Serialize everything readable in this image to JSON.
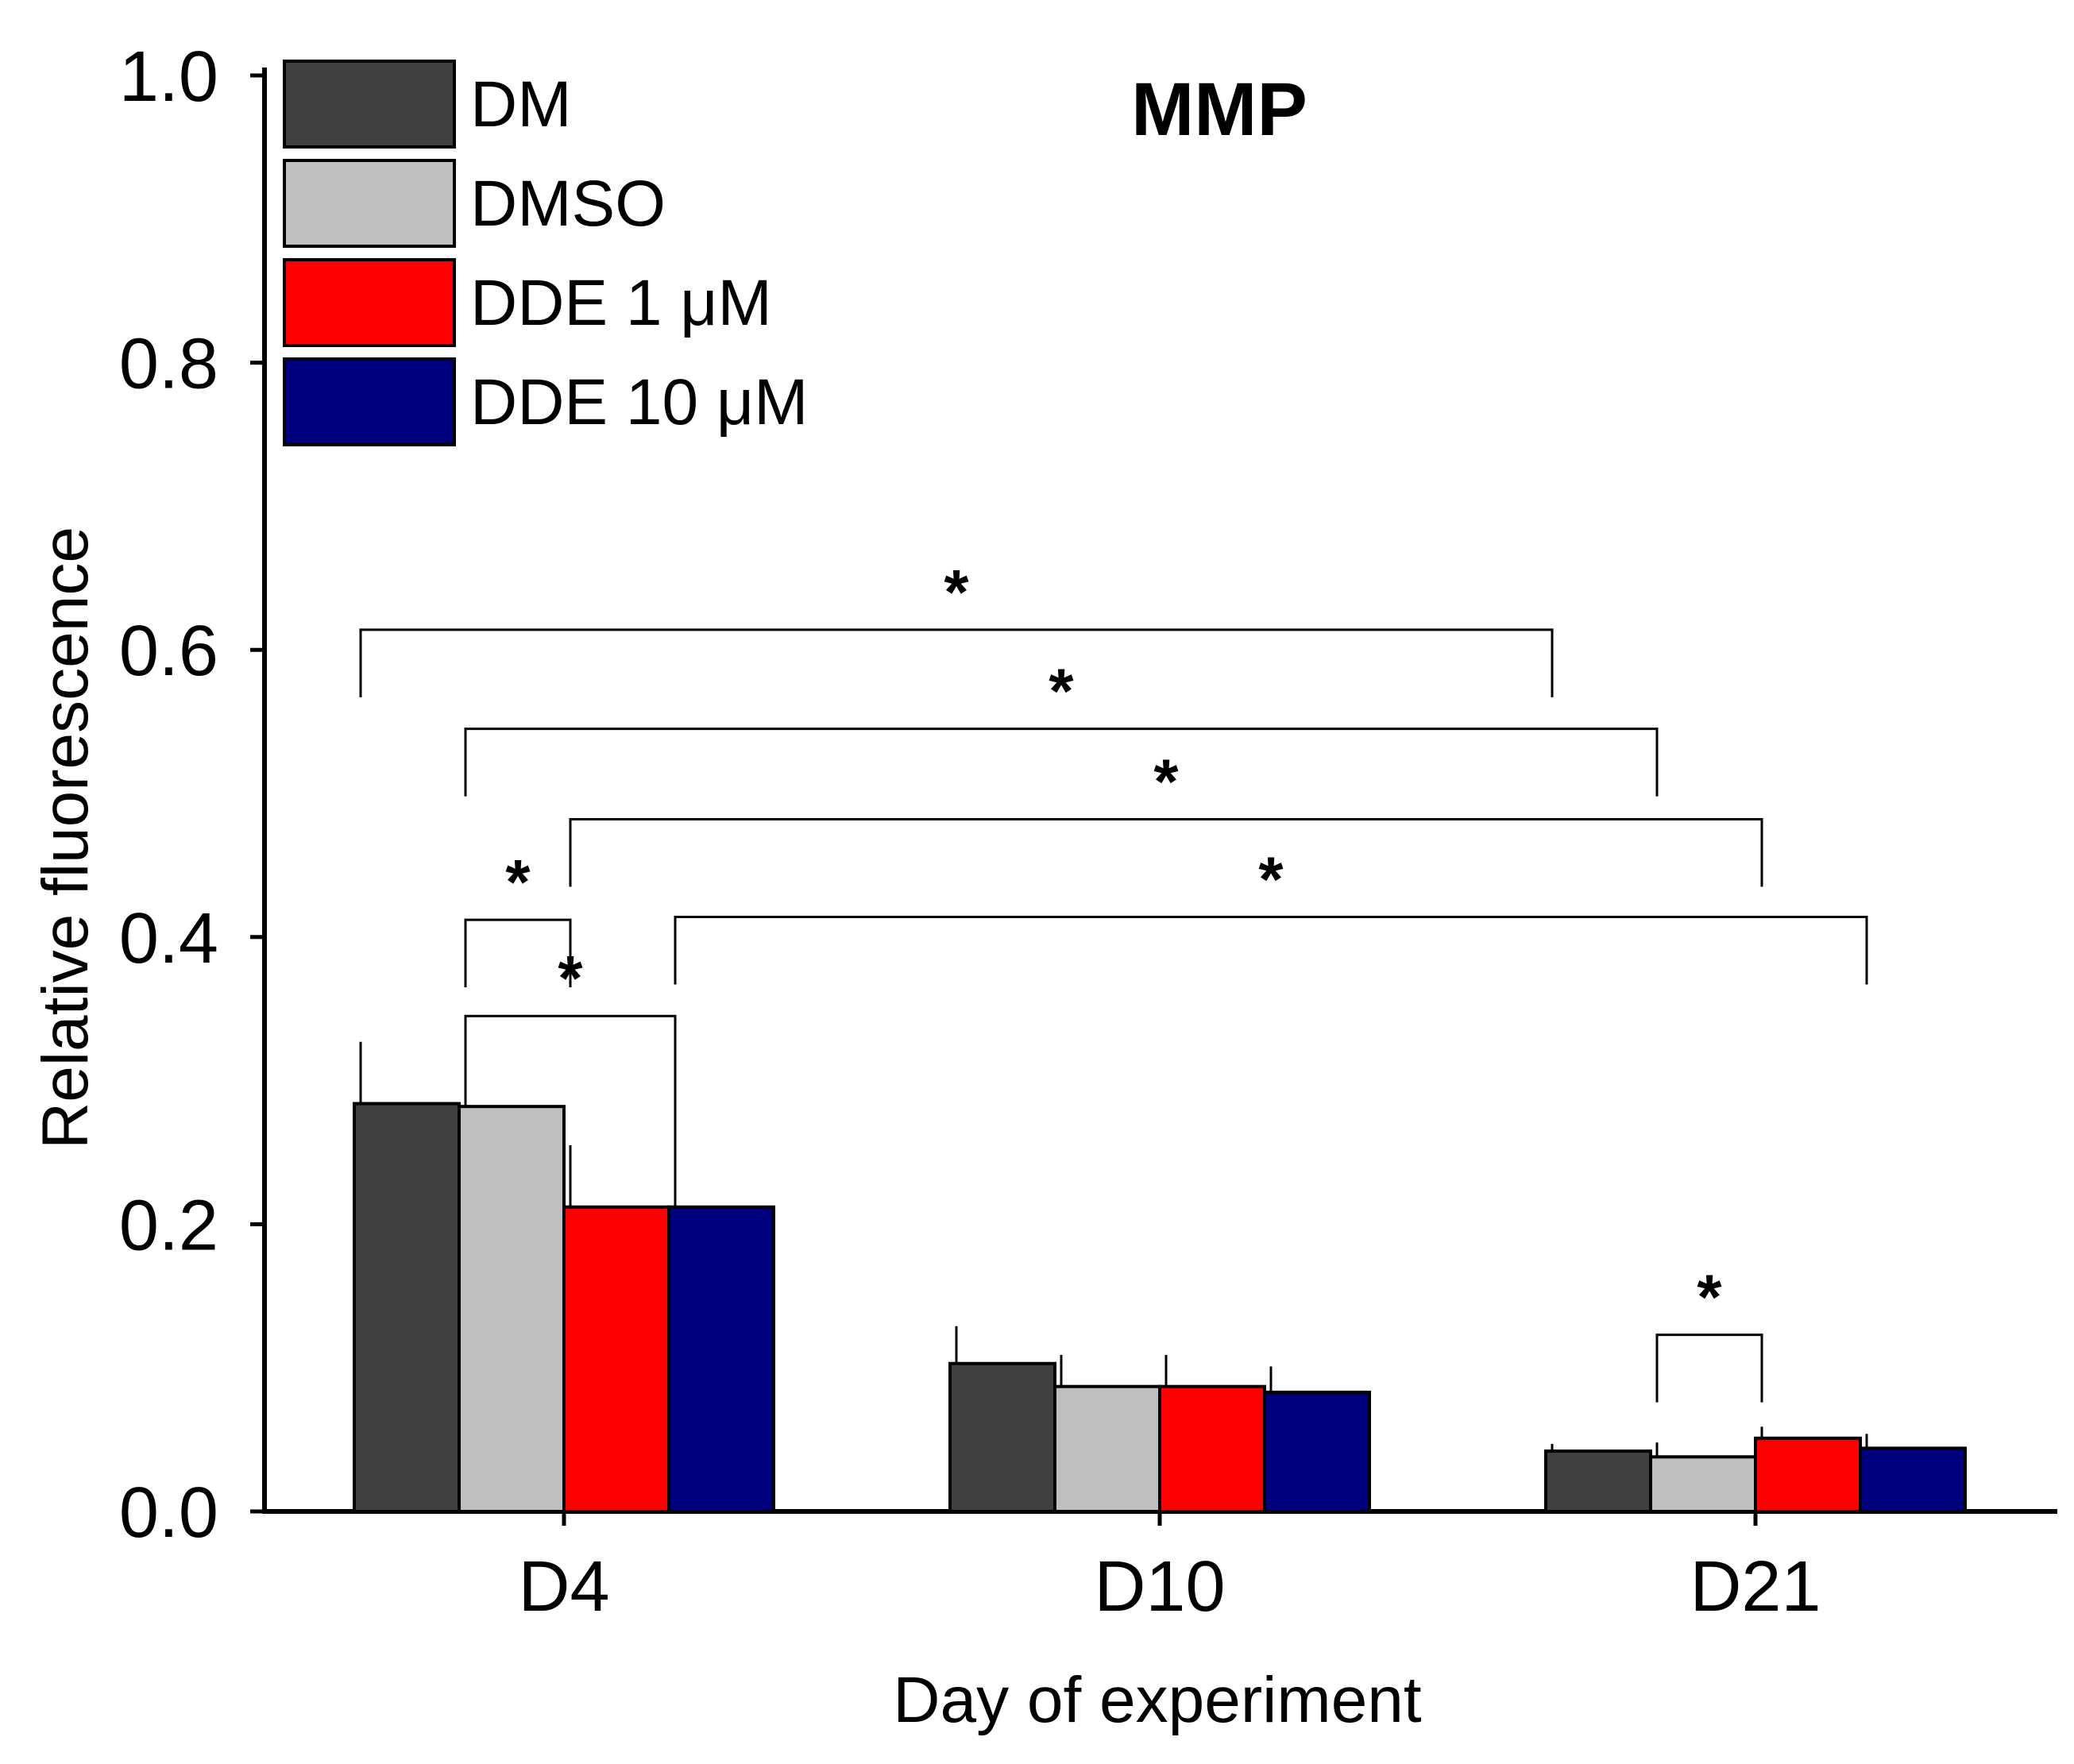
{
  "chart_data": {
    "type": "bar",
    "title": "MMP",
    "xlabel": "Day of experiment",
    "ylabel": "Relative fluorescence",
    "ylim": [
      0.0,
      1.0
    ],
    "yticks": [
      "0.0",
      "0.2",
      "0.4",
      "0.6",
      "0.8",
      "1.0"
    ],
    "categories": [
      "D4",
      "D10",
      "D21"
    ],
    "legend_position": "top-left",
    "series": [
      {
        "name": "DM",
        "color": "#404040",
        "values": [
          0.284,
          0.103,
          0.042
        ],
        "errors": [
          0.043,
          0.026,
          0.005
        ]
      },
      {
        "name": "DMSO",
        "color": "#bfbfbf",
        "values": [
          0.282,
          0.087,
          0.038
        ],
        "errors": [
          0.033,
          0.022,
          0.01
        ]
      },
      {
        "name": "DDE 1 μM",
        "color": "#ff0000",
        "values": [
          0.212,
          0.087,
          0.051
        ],
        "errors": [
          0.043,
          0.022,
          0.008
        ]
      },
      {
        "name": "DDE 10 μM",
        "color": "#00007f",
        "values": [
          0.212,
          0.083,
          0.044
        ],
        "errors": [
          0.087,
          0.018,
          0.01
        ]
      }
    ],
    "significance": [
      {
        "label": "*",
        "from": [
          0,
          0
        ],
        "to": [
          2,
          0
        ],
        "y": 0.614
      },
      {
        "label": "*",
        "from": [
          0,
          1
        ],
        "to": [
          2,
          1
        ],
        "y": 0.545
      },
      {
        "label": "*",
        "from": [
          0,
          2
        ],
        "to": [
          2,
          2
        ],
        "y": 0.482
      },
      {
        "label": "*",
        "from": [
          0,
          3
        ],
        "to": [
          2,
          3
        ],
        "y": 0.414
      },
      {
        "label": "*",
        "from": [
          0,
          1
        ],
        "to": [
          0,
          2
        ],
        "y": 0.412
      },
      {
        "label": "*",
        "from": [
          0,
          1
        ],
        "to": [
          0,
          3
        ],
        "y": 0.345
      },
      {
        "label": "*",
        "from": [
          2,
          1
        ],
        "to": [
          2,
          2
        ],
        "y": 0.123
      }
    ]
  }
}
